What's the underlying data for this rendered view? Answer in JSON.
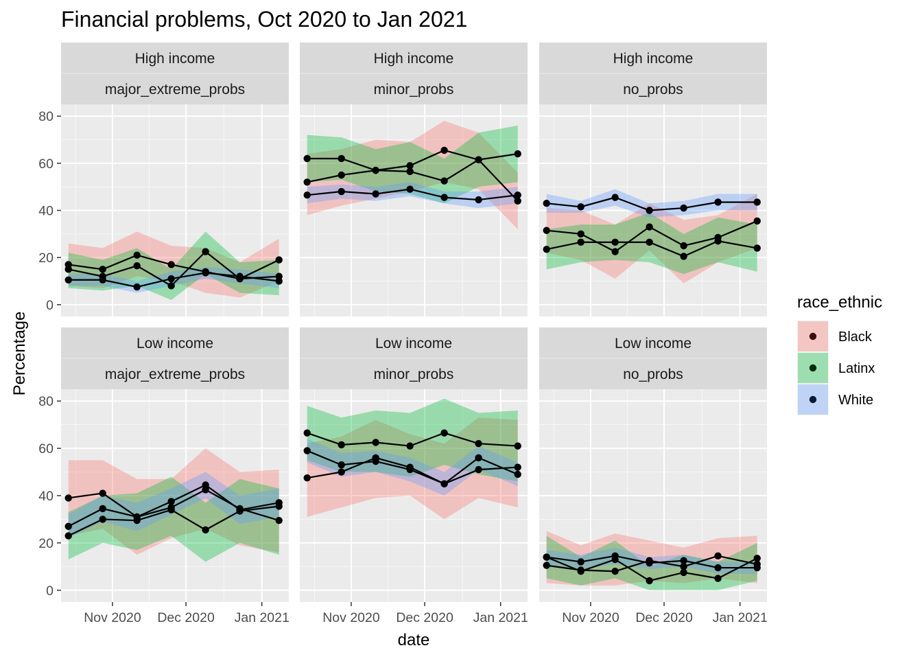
{
  "chart_data": {
    "type": "line",
    "title": "Financial problems, Oct 2020 to Jan 2021",
    "xlabel": "date",
    "ylabel": "Percentage",
    "ylim": [
      -5,
      85
    ],
    "yticks": [
      0,
      20,
      40,
      60,
      80
    ],
    "xlim": [
      "2020-10-11",
      "2021-01-12"
    ],
    "xticks": [
      {
        "date": "2020-11-01",
        "label": "Nov 2020"
      },
      {
        "date": "2020-12-01",
        "label": "Dec 2020"
      },
      {
        "date": "2021-01-01",
        "label": "Jan 2021"
      }
    ],
    "x": [
      "2020-10-14",
      "2020-10-28",
      "2020-11-11",
      "2020-11-25",
      "2020-12-09",
      "2020-12-23",
      "2021-01-08"
    ],
    "legend": {
      "title": "race_ethnic",
      "position": "right",
      "entries": [
        {
          "name": "Black",
          "fill": "#F8766D",
          "point": "#3b0f0c"
        },
        {
          "name": "Latinx",
          "fill": "#00BA38",
          "point": "#002b0c"
        },
        {
          "name": "White",
          "fill": "#619CFF",
          "point": "#0d1a33"
        }
      ]
    },
    "band_opacity": 0.35,
    "panels": [
      {
        "row": 0,
        "col": 0,
        "strip": [
          "High income",
          "major_extreme_probs"
        ],
        "series": [
          {
            "name": "Black",
            "values": [
              17,
              15,
              21,
              17,
              14,
              11,
              19
            ],
            "lower": [
              8,
              7,
              12,
              10,
              5,
              3,
              10
            ],
            "upper": [
              26,
              24,
              31,
              25,
              24,
              18,
              28
            ]
          },
          {
            "name": "Latinx",
            "values": [
              15,
              12,
              16.5,
              8,
              22.5,
              11,
              12
            ],
            "lower": [
              7,
              6,
              8,
              2,
              13,
              5,
              4
            ],
            "upper": [
              22,
              19,
              24,
              15,
              31,
              18,
              19
            ]
          },
          {
            "name": "White",
            "values": [
              10.5,
              10.5,
              7.5,
              11,
              13.5,
              12,
              10
            ],
            "lower": [
              8,
              8,
              5,
              8,
              11,
              9,
              7
            ],
            "upper": [
              13,
              13,
              10,
              14,
              16,
              15,
              13
            ]
          }
        ]
      },
      {
        "row": 0,
        "col": 1,
        "strip": [
          "High income",
          "minor_probs"
        ],
        "series": [
          {
            "name": "Black",
            "values": [
              52,
              55,
              57,
              59,
              65.5,
              61.5,
              44
            ],
            "lower": [
              38,
              42,
              45,
              48,
              52,
              49,
              32
            ],
            "upper": [
              64,
              66,
              70,
              69,
              78,
              73,
              56
            ]
          },
          {
            "name": "Latinx",
            "values": [
              62,
              62,
              57,
              56.5,
              52.5,
              61.5,
              64
            ],
            "lower": [
              52,
              53,
              48,
              47,
              43,
              50,
              52
            ],
            "upper": [
              72,
              71,
              66,
              69,
              62,
              73,
              76
            ]
          },
          {
            "name": "White",
            "values": [
              46.5,
              48,
              47,
              49,
              45.5,
              44.5,
              46.5
            ],
            "lower": [
              43,
              45,
              44,
              46,
              43,
              41,
              43
            ],
            "upper": [
              50,
              51,
              50,
              52,
              48,
              48,
              50
            ]
          }
        ]
      },
      {
        "row": 0,
        "col": 2,
        "strip": [
          "High income",
          "no_probs"
        ],
        "series": [
          {
            "name": "Black",
            "values": [
              31.5,
              30,
              22.5,
              33,
              25,
              28.5,
              35.5
            ],
            "lower": [
              22,
              19,
              11,
              23,
              9,
              18,
              24
            ],
            "upper": [
              41,
              40,
              34,
              43,
              36,
              38,
              47
            ]
          },
          {
            "name": "Latinx",
            "values": [
              23.5,
              26.5,
              26.5,
              26.5,
              20.5,
              27,
              24
            ],
            "lower": [
              15,
              18,
              19,
              18,
              13,
              18,
              14
            ],
            "upper": [
              32,
              34,
              34,
              39,
              30,
              37,
              34
            ]
          },
          {
            "name": "White",
            "values": [
              43,
              41.5,
              45.5,
              40,
              41,
              43.5,
              43.5
            ],
            "lower": [
              39,
              39,
              42,
              37,
              38,
              40,
              40
            ],
            "upper": [
              47,
              44,
              49,
              43,
              44,
              47,
              47
            ]
          }
        ]
      },
      {
        "row": 1,
        "col": 0,
        "strip": [
          "Low income",
          "major_extreme_probs"
        ],
        "series": [
          {
            "name": "Black",
            "values": [
              39,
              41,
              31,
              35,
              42.5,
              34.5,
              29.5
            ],
            "lower": [
              23,
              26,
              15,
              22,
              26,
              19,
              16
            ],
            "upper": [
              55,
              55,
              47,
              47,
              60,
              50,
              51
            ]
          },
          {
            "name": "Latinx",
            "values": [
              23,
              30,
              29.5,
              34,
              25.5,
              33.5,
              35.5
            ],
            "lower": [
              13,
              20,
              17,
              23,
              12,
              20,
              15
            ],
            "upper": [
              33,
              40,
              41,
              48,
              37,
              47,
              43
            ]
          },
          {
            "name": "White",
            "values": [
              27,
              34.5,
              31,
              37.5,
              44.5,
              34,
              37
            ],
            "lower": [
              22,
              29,
              25,
              32,
              39,
              28,
              31
            ],
            "upper": [
              32,
              40,
              37,
              43,
              50,
              40,
              43
            ]
          }
        ]
      },
      {
        "row": 1,
        "col": 1,
        "strip": [
          "Low income",
          "minor_probs"
        ],
        "series": [
          {
            "name": "Black",
            "values": [
              47.5,
              50,
              56,
              52,
              45,
              51,
              52
            ],
            "lower": [
              31,
              35,
              39,
              40,
              30,
              39,
              35
            ],
            "upper": [
              62,
              65,
              72,
              66,
              62,
              73,
              72
            ]
          },
          {
            "name": "Latinx",
            "values": [
              66.5,
              61.5,
              62.5,
              61,
              66.5,
              62,
              61
            ],
            "lower": [
              55,
              50,
              50,
              48,
              53,
              49,
              46
            ],
            "upper": [
              78,
              73,
              76,
              75,
              81,
              75,
              76
            ]
          },
          {
            "name": "White",
            "values": [
              59,
              53,
              54.5,
              51,
              45,
              56,
              49
            ],
            "lower": [
              54,
              48,
              50,
              46,
              40,
              51,
              44
            ],
            "upper": [
              64,
              58,
              59,
              56,
              50,
              61,
              54
            ]
          }
        ]
      },
      {
        "row": 1,
        "col": 2,
        "strip": [
          "Low income",
          "no_probs"
        ],
        "series": [
          {
            "name": "Black",
            "values": [
              10.5,
              8.5,
              8,
              12.5,
              10,
              14.5,
              11
            ],
            "lower": [
              3,
              2,
              2,
              4,
              3,
              5,
              3
            ],
            "upper": [
              25,
              19,
              24,
              21,
              18,
              22,
              23
            ]
          },
          {
            "name": "Latinx",
            "values": [
              14,
              8,
              13,
              4,
              7.5,
              5,
              13.5
            ],
            "lower": [
              5,
              2,
              5,
              0,
              0,
              0,
              4
            ],
            "upper": [
              23,
              14,
              21,
              10,
              15,
              12,
              20
            ]
          },
          {
            "name": "White",
            "values": [
              14,
              12,
              14.5,
              11.5,
              12.5,
              9.5,
              9.5
            ],
            "lower": [
              11,
              9,
              11,
              9,
              10,
              7,
              7
            ],
            "upper": [
              17,
              15,
              18,
              14,
              15,
              12,
              12
            ]
          }
        ]
      }
    ]
  }
}
